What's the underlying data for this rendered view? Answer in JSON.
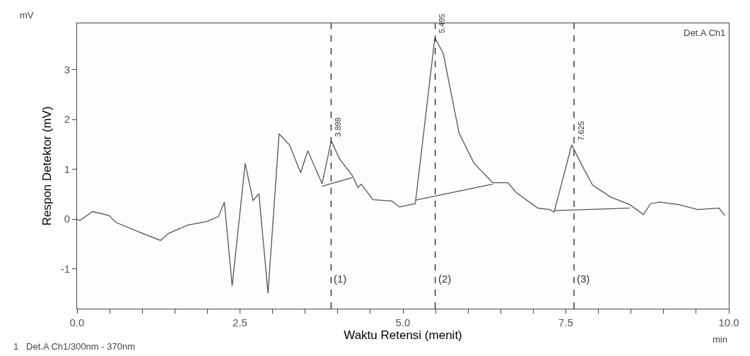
{
  "chart_data": {
    "type": "line",
    "xlabel": "Waktu Retensi (menit)",
    "ylabel": "Respon Detektor (mV)",
    "xlim": [
      0,
      10
    ],
    "ylim": [
      -1.8,
      3.93
    ],
    "xticks": [
      {
        "value": 0,
        "label": "0.0"
      },
      {
        "value": 0.5,
        "label": null
      },
      {
        "value": 1,
        "label": null
      },
      {
        "value": 1.5,
        "label": null
      },
      {
        "value": 2,
        "label": null
      },
      {
        "value": 2.5,
        "label": "2.5"
      },
      {
        "value": 3,
        "label": null
      },
      {
        "value": 3.5,
        "label": null
      },
      {
        "value": 4,
        "label": null
      },
      {
        "value": 4.5,
        "label": null
      },
      {
        "value": 5,
        "label": "5.0"
      },
      {
        "value": 5.5,
        "label": null
      },
      {
        "value": 6,
        "label": null
      },
      {
        "value": 6.5,
        "label": null
      },
      {
        "value": 7,
        "label": null
      },
      {
        "value": 7.5,
        "label": "7.5"
      },
      {
        "value": 8,
        "label": null
      },
      {
        "value": 8.5,
        "label": null
      },
      {
        "value": 9,
        "label": null
      },
      {
        "value": 9.5,
        "label": null
      },
      {
        "value": 10,
        "label": "10.0"
      }
    ],
    "yticks": [
      -1,
      0,
      1,
      2,
      3
    ],
    "marker": "none",
    "line_style": "solid",
    "series": [
      {
        "color": "#555555",
        "x": [
          0,
          0.04,
          0.24,
          0.49,
          0.6,
          0.97,
          1.28,
          1.4,
          1.7,
          1.99,
          2.17,
          2.26,
          2.38,
          2.58,
          2.7,
          2.79,
          2.93,
          3.1,
          3.26,
          3.43,
          3.54,
          3.76,
          3.9,
          4.03,
          4.22,
          4.31,
          4.36,
          4.54,
          4.83,
          4.95,
          5.19,
          5.49,
          5.62,
          5.86,
          6.09,
          6.38,
          6.61,
          6.74,
          7.07,
          7.25,
          7.32,
          7.59,
          7.73,
          7.91,
          8.19,
          8.48,
          8.69,
          8.8,
          8.95,
          9.23,
          9.52,
          9.85,
          9.94
        ],
        "values": [
          0,
          -0.03,
          0.15,
          0.07,
          -0.07,
          -0.27,
          -0.43,
          -0.29,
          -0.12,
          -0.05,
          0.05,
          0.34,
          -1.34,
          1.12,
          0.37,
          0.51,
          -1.49,
          1.71,
          1.49,
          0.93,
          1.37,
          0.71,
          1.57,
          1.2,
          0.88,
          0.63,
          0.7,
          0.39,
          0.36,
          0.24,
          0.31,
          3.64,
          3.32,
          1.73,
          1.12,
          0.73,
          0.73,
          0.53,
          0.22,
          0.19,
          0.14,
          1.49,
          1.12,
          0.68,
          0.44,
          0.29,
          0.09,
          0.31,
          0.34,
          0.29,
          0.19,
          0.22,
          0.07
        ]
      },
      {
        "color": "#555555",
        "x": [
          3.76,
          4.22
        ],
        "values": [
          0.66,
          0.83
        ]
      },
      {
        "color": "#555555",
        "x": [
          5.19,
          6.38
        ],
        "values": [
          0.38,
          0.7
        ]
      },
      {
        "color": "#555555",
        "x": [
          7.32,
          8.48
        ],
        "values": [
          0.17,
          0.22
        ]
      }
    ],
    "ref_lines": [
      {
        "axis": "x",
        "value": 3.898,
        "color": "#222222",
        "line_style": "dashed"
      },
      {
        "axis": "x",
        "value": 5.495,
        "color": "#222222",
        "line_style": "dashed"
      },
      {
        "axis": "x",
        "value": 7.625,
        "color": "#222222",
        "line_style": "dashed"
      }
    ],
    "annotations": [
      {
        "text": "(1)",
        "x": 3.898,
        "y": -1.2
      },
      {
        "text": "(2)",
        "x": 5.495,
        "y": -1.2
      },
      {
        "text": "(3)",
        "x": 7.625,
        "y": -1.2
      },
      {
        "text": "3.898",
        "x": 3.898,
        "y": 1.57
      },
      {
        "text": "5.495",
        "x": 5.495,
        "y": 3.64
      },
      {
        "text": "7.625",
        "x": 7.625,
        "y": 1.49
      },
      "mV",
      "Det.A Ch1",
      "1   Det.A Ch1/300nm - 370nm",
      "min"
    ]
  }
}
